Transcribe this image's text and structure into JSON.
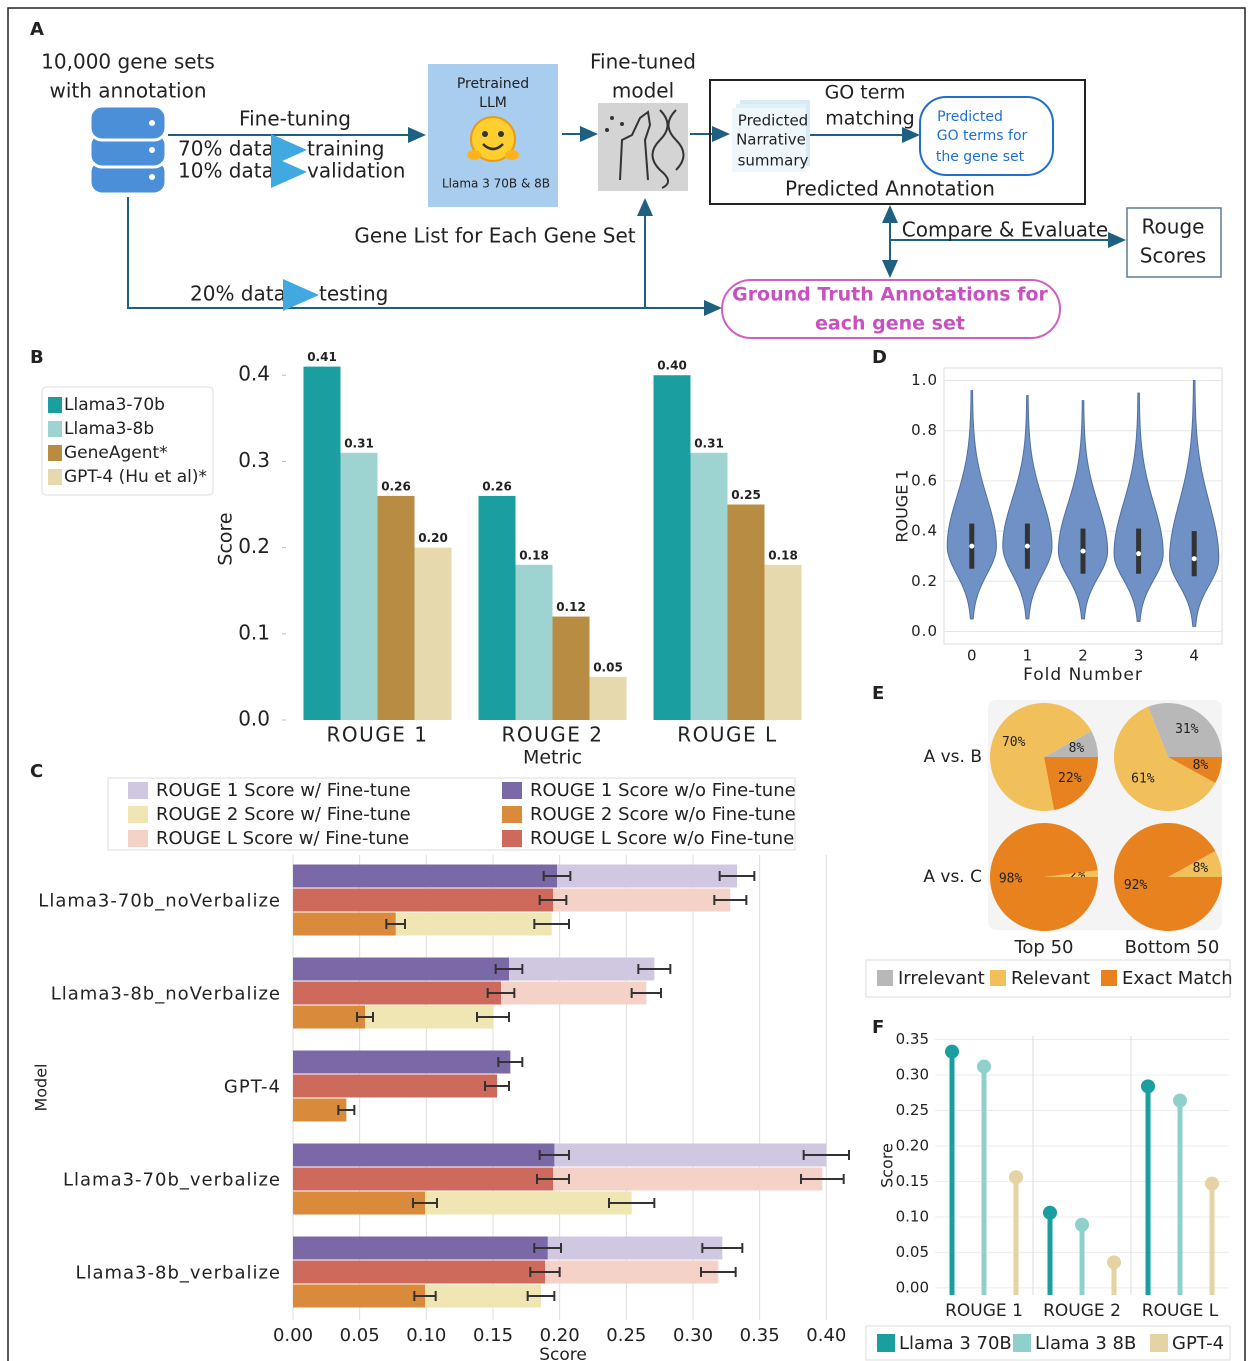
{
  "diagram": {
    "label": "A",
    "source": [
      "10,000 gene sets",
      "with annotation"
    ],
    "fine_tuning": "Fine-tuning",
    "splits": [
      {
        "data": "70% data",
        "use": "training"
      },
      {
        "data": "10% data",
        "use": "validation"
      }
    ],
    "llm": {
      "title": [
        "Pretrained",
        "LLM"
      ],
      "models": "Llama 3 70B & 8B"
    },
    "fine_tuned": [
      "Fine-tuned",
      "model"
    ],
    "narrative": [
      "Predicted",
      "Narrative",
      "summary"
    ],
    "matching": [
      "GO term",
      "matching"
    ],
    "go_terms": [
      "Predicted",
      "GO terms for",
      "the gene set"
    ],
    "predicted_annotation": "Predicted Annotation",
    "gene_list": "Gene List for Each Gene Set",
    "compare": "Compare & Evaluate",
    "rouge": [
      "Rouge",
      "Scores"
    ],
    "test_split": {
      "data": "20% data",
      "use": "testing"
    },
    "ground_truth": [
      "Ground Truth Annotations for",
      "each gene set"
    ]
  },
  "chart_data": [
    {
      "type": "bar",
      "label": "B",
      "xlabel": "Metric",
      "ylabel": "Score",
      "categories": [
        "ROUGE 1",
        "ROUGE 2",
        "ROUGE L"
      ],
      "series": [
        {
          "name": "Llama3-70b",
          "color": "#1a9ea0",
          "values": [
            0.41,
            0.26,
            0.4
          ],
          "value_labels": [
            "0.41",
            "0.26",
            "0.40"
          ]
        },
        {
          "name": "Llama3-8b",
          "color": "#9dd3d0",
          "values": [
            0.31,
            0.18,
            0.31
          ],
          "value_labels": [
            "0.31",
            "0.18",
            "0.31"
          ]
        },
        {
          "name": "GeneAgent*",
          "color": "#b88d43",
          "values": [
            0.26,
            0.12,
            0.25
          ],
          "value_labels": [
            "0.26",
            "0.12",
            "0.25"
          ]
        },
        {
          "name": "GPT-4 (Hu et al)*",
          "color": "#e6d9ae",
          "values": [
            0.2,
            0.05,
            0.18
          ],
          "value_labels": [
            "0.20",
            "0.05",
            "0.18"
          ]
        }
      ],
      "ylim": [
        0,
        0.42
      ],
      "yticks": [
        {
          "value": 0,
          "label": "0.0"
        },
        0.1,
        0.2,
        0.3,
        0.4
      ]
    },
    {
      "type": "barh",
      "label": "C",
      "xlabel": "Score",
      "ylabel": "Model",
      "categories": [
        "Llama3-70b_noVerbalize",
        "Llama3-8b_noVerbalize",
        "GPT-4",
        "Llama3-70b_verbalize",
        "Llama3-8b_verbalize"
      ],
      "series": [
        {
          "name": "ROUGE 1 Score w/ Fine-tune",
          "color": "#cfc8e0",
          "values": [
            0.333,
            0.271,
            null,
            0.4,
            0.322
          ],
          "errors": [
            0.013,
            0.012,
            null,
            0.017,
            0.015
          ]
        },
        {
          "name": "ROUGE 2 Score w/ Fine-tune",
          "color": "#f0e6b4",
          "values": [
            0.194,
            0.15,
            null,
            0.254,
            0.186
          ],
          "errors": [
            0.013,
            0.012,
            null,
            0.017,
            0.01
          ]
        },
        {
          "name": "ROUGE L Score w/ Fine-tune",
          "color": "#f5d2c8",
          "values": [
            0.328,
            0.265,
            null,
            0.397,
            0.319
          ],
          "errors": [
            0.012,
            0.011,
            null,
            0.016,
            0.013
          ]
        },
        {
          "name": "ROUGE 1 Score w/o Fine-tune",
          "color": "#7b68a6",
          "values": [
            0.198,
            0.162,
            0.163,
            0.196,
            0.191
          ],
          "errors": [
            0.01,
            0.01,
            0.009,
            0.011,
            0.01
          ]
        },
        {
          "name": "ROUGE 2 Score w/o Fine-tune",
          "color": "#d98a3a",
          "values": [
            0.077,
            0.054,
            0.04,
            0.099,
            0.099
          ],
          "errors": [
            0.007,
            0.006,
            0.006,
            0.009,
            0.008
          ]
        },
        {
          "name": "ROUGE L Score w/o Fine-tune",
          "color": "#cd6a5c",
          "values": [
            0.195,
            0.156,
            0.153,
            0.195,
            0.189
          ],
          "errors": [
            0.01,
            0.01,
            0.009,
            0.012,
            0.011
          ]
        }
      ],
      "xlim": [
        0,
        0.42
      ],
      "xticks": [
        {
          "value": 0,
          "label": "0.00"
        },
        0.05,
        {
          "value": 0.1,
          "label": "0.10"
        },
        0.15,
        {
          "value": 0.2,
          "label": "0.20"
        },
        0.25,
        {
          "value": 0.3,
          "label": "0.30"
        },
        0.35,
        {
          "value": 0.4,
          "label": "0.40"
        }
      ],
      "grid": true
    },
    {
      "type": "violin",
      "label": "D",
      "xlabel": "Fold Number",
      "ylabel": "ROUGE 1",
      "color": "#6f91c6",
      "categories": [
        "0",
        "1",
        "2",
        "3",
        "4"
      ],
      "min": [
        0.05,
        0.05,
        0.05,
        0.04,
        0.02
      ],
      "q1": [
        0.25,
        0.25,
        0.23,
        0.23,
        0.22
      ],
      "median": [
        0.34,
        0.34,
        0.32,
        0.31,
        0.29
      ],
      "q3": [
        0.43,
        0.43,
        0.41,
        0.41,
        0.4
      ],
      "max": [
        0.96,
        0.94,
        0.92,
        0.95,
        1.0
      ],
      "ylim": [
        -0.05,
        1.05
      ],
      "yticks": [
        {
          "value": 0,
          "label": "0.0"
        },
        0.2,
        0.4,
        0.6,
        0.8,
        {
          "value": 1,
          "label": "1.0"
        }
      ],
      "grid": true
    },
    {
      "type": "pie",
      "label": "E",
      "categories": [
        "Irrelevant",
        "Relevant",
        "Exact Match"
      ],
      "colors": [
        "#b8b8b8",
        "#f2c05a",
        "#e8821e"
      ],
      "rows": [
        "A vs. B",
        "A vs. C"
      ],
      "columns": [
        "Top 50",
        "Bottom 50"
      ],
      "pies": [
        {
          "values": [
            8,
            70,
            22
          ],
          "value_labels": [
            "8%",
            "70%",
            "22%"
          ]
        },
        {
          "values": [
            31,
            61,
            8
          ],
          "value_labels": [
            "31%",
            "61%",
            "8%"
          ]
        },
        {
          "values": [
            0,
            2,
            98
          ],
          "value_labels": [
            null,
            "2%",
            "98%"
          ]
        },
        {
          "values": [
            0,
            8,
            92
          ],
          "value_labels": [
            null,
            "8%",
            "92%"
          ]
        }
      ]
    },
    {
      "type": "lollipop",
      "label": "F",
      "ylabel": "Score",
      "categories": [
        "ROUGE 1",
        "ROUGE 2",
        "ROUGE L"
      ],
      "series": [
        {
          "name": "Llama 3 70B",
          "color": "#1a9ea0",
          "values": [
            0.333,
            0.106,
            0.284
          ]
        },
        {
          "name": "Llama 3 8B",
          "color": "#8fd0cc",
          "values": [
            0.312,
            0.089,
            0.264
          ]
        },
        {
          "name": "GPT-4",
          "color": "#e6d3a3",
          "values": [
            0.156,
            0.036,
            0.147
          ]
        }
      ],
      "ylim": [
        -0.01,
        0.355
      ],
      "yticks": [
        {
          "value": 0,
          "label": "0.00"
        },
        0.05,
        {
          "value": 0.1,
          "label": "0.10"
        },
        0.15,
        {
          "value": 0.2,
          "label": "0.20"
        },
        0.25,
        {
          "value": 0.3,
          "label": "0.30"
        },
        0.35
      ],
      "grid": true
    }
  ]
}
